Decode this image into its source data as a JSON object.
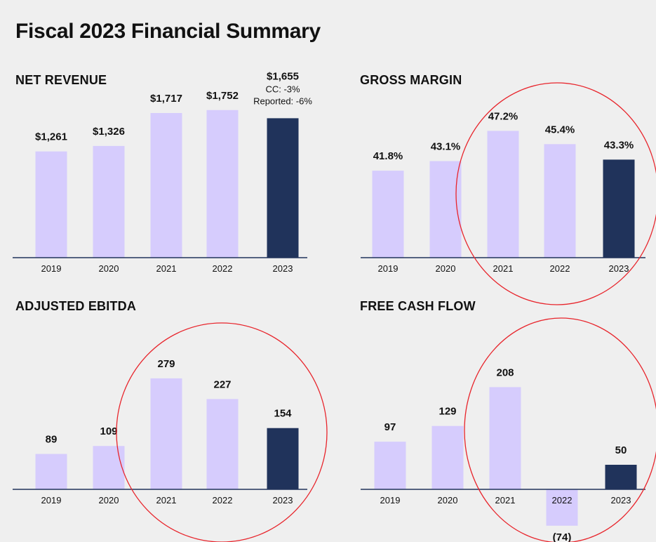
{
  "title": "Fiscal 2023 Financial Summary",
  "colors": {
    "past": "#d6ccfd",
    "current": "#20335b",
    "axis": "#20335b",
    "highlight": "#e8242b"
  },
  "chart_data": [
    {
      "id": "net-revenue",
      "type": "bar",
      "title": "NET REVENUE",
      "categories": [
        "2019",
        "2020",
        "2021",
        "2022",
        "2023"
      ],
      "values": [
        1261,
        1326,
        1717,
        1752,
        1655
      ],
      "value_labels": [
        "$1,261",
        "$1,326",
        "$1,717",
        "$1,752",
        "$1,655"
      ],
      "annotations": [
        "CC: -3%",
        "Reported: -6%"
      ],
      "ylim": [
        0,
        2000
      ],
      "highlighted": false
    },
    {
      "id": "gross-margin",
      "type": "bar",
      "title": "GROSS MARGIN",
      "categories": [
        "2019",
        "2020",
        "2021",
        "2022",
        "2023"
      ],
      "values": [
        41.8,
        43.1,
        47.2,
        45.4,
        43.3
      ],
      "value_labels": [
        "41.8%",
        "43.1%",
        "47.2%",
        "45.4%",
        "43.3%"
      ],
      "annotations": [],
      "ylim": [
        30,
        50
      ],
      "highlighted": true
    },
    {
      "id": "adjusted-ebitda",
      "type": "bar",
      "title": "ADJUSTED EBITDA",
      "categories": [
        "2019",
        "2020",
        "2021",
        "2022",
        "2023"
      ],
      "values": [
        89,
        109,
        279,
        227,
        154
      ],
      "value_labels": [
        "89",
        "109",
        "279",
        "227",
        "154"
      ],
      "annotations": [],
      "ylim": [
        0,
        300
      ],
      "highlighted": true
    },
    {
      "id": "free-cash-flow",
      "type": "bar",
      "title": "FREE CASH FLOW",
      "categories": [
        "2019",
        "2020",
        "2021",
        "2022",
        "2023"
      ],
      "values": [
        97,
        129,
        208,
        -74,
        50
      ],
      "value_labels": [
        "97",
        "129",
        "208",
        "(74)",
        "50"
      ],
      "annotations": [],
      "ylim": [
        -80,
        240
      ],
      "highlighted": true
    }
  ]
}
